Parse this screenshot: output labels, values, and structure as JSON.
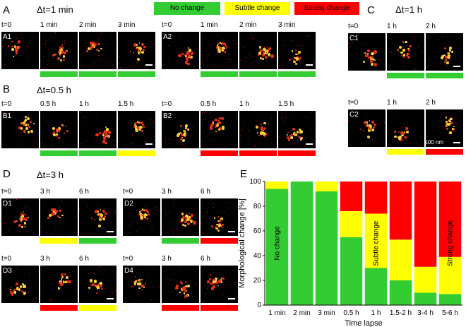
{
  "colors": {
    "none": "#33cc33",
    "subtle": "#ffff00",
    "strong": "#ff0000",
    "panel_bg": "#000000"
  },
  "legend": {
    "none": "No change",
    "subtle": "Subtle change",
    "strong": "Strong change"
  },
  "panels": {
    "A": {
      "label": "A",
      "dt": "Δt=1 min",
      "time_labels": [
        "t=0",
        "1 min",
        "2 min",
        "3 min"
      ],
      "rows": [
        {
          "id": "A1",
          "bars": [
            "none",
            "none",
            "none"
          ]
        },
        {
          "id": "A2",
          "bars": [
            "none",
            "none",
            "none"
          ]
        }
      ]
    },
    "B": {
      "label": "B",
      "dt": "Δt=0.5 h",
      "time_labels": [
        "t=0",
        "0.5 h",
        "1 h",
        "1.5 h"
      ],
      "rows": [
        {
          "id": "B1",
          "bars": [
            "none",
            "none",
            "subtle"
          ]
        },
        {
          "id": "B2",
          "bars": [
            "strong",
            "strong",
            "strong"
          ]
        }
      ]
    },
    "C": {
      "label": "C",
      "dt": "Δt=1 h",
      "time_labels": [
        "t=0",
        "1 h",
        "2 h"
      ],
      "rows": [
        {
          "id": "C1",
          "bars": [
            "none",
            "none"
          ]
        },
        {
          "id": "C2",
          "bars": [
            "subtle",
            "strong"
          ]
        }
      ],
      "scale_label": "500 nm"
    },
    "D": {
      "label": "D",
      "dt": "Δt=3 h",
      "time_labels": [
        "t=0",
        "3 h",
        "6 h"
      ],
      "rows": [
        {
          "id": "D1",
          "bars": [
            "subtle",
            "none"
          ]
        },
        {
          "id": "D2",
          "bars": [
            "none",
            "strong"
          ]
        },
        {
          "id": "D3",
          "bars": [
            "strong",
            "subtle"
          ]
        },
        {
          "id": "D4",
          "bars": [
            "strong",
            "strong"
          ]
        }
      ]
    },
    "E": {
      "label": "E"
    }
  },
  "chart_data": {
    "type": "bar",
    "stacked": true,
    "xlabel": "Time lapse",
    "ylabel": "Morphological change [%]",
    "ylim": [
      0,
      100
    ],
    "yticks": [
      0,
      20,
      40,
      60,
      80,
      100
    ],
    "categories": [
      "1 min",
      "2 min",
      "3 min",
      "0.5 h",
      "1 h",
      "1.5-2 h",
      "3-4 h",
      "5-6 h"
    ],
    "series": [
      {
        "name": "No change",
        "color": "#33cc33",
        "values": [
          94,
          100,
          92,
          55,
          30,
          20,
          10,
          9
        ]
      },
      {
        "name": "Subtle change",
        "color": "#ffff00",
        "values": [
          6,
          0,
          8,
          21,
          44,
          33,
          21,
          30
        ]
      },
      {
        "name": "Strong change",
        "color": "#ff0000",
        "values": [
          0,
          0,
          0,
          24,
          26,
          47,
          69,
          61
        ]
      }
    ],
    "annotations": [
      {
        "text": "No change",
        "category": "1 min"
      },
      {
        "text": "Subtle change",
        "category": "1 h"
      },
      {
        "text": "Strong change",
        "category": "5-6 h"
      }
    ]
  }
}
